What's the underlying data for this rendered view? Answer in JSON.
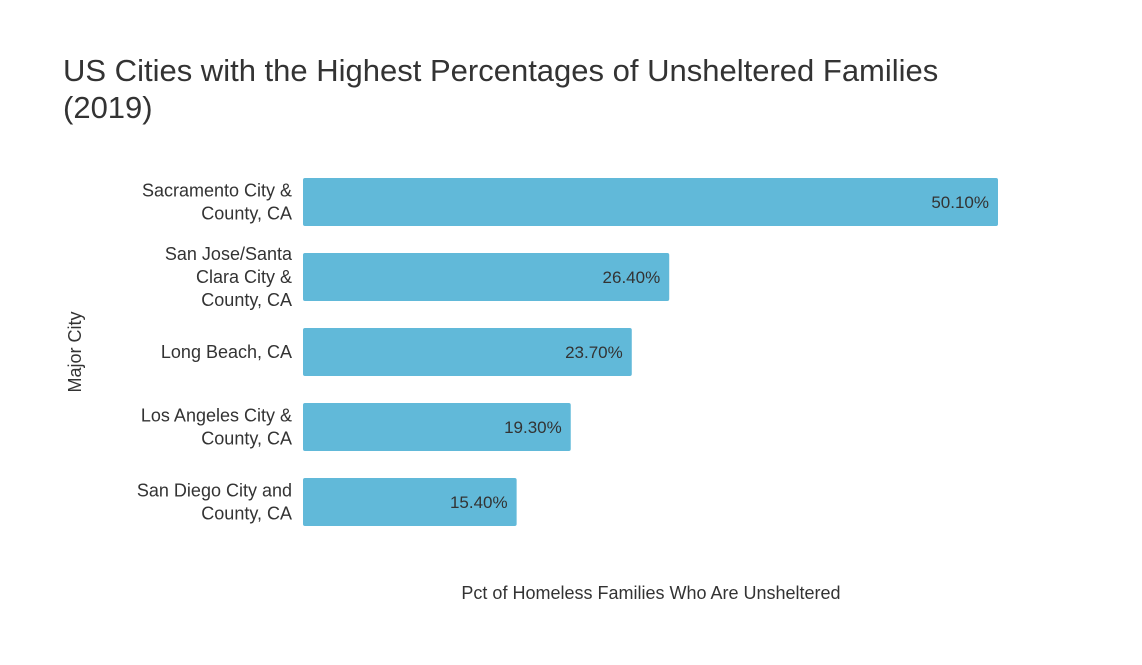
{
  "chart_data": {
    "type": "bar",
    "orientation": "horizontal",
    "title_lines": [
      "US Cities with the Highest Percentages of Unsheltered Families",
      "(2019)"
    ],
    "xlabel": "Pct of Homeless Families Who Are Unsheltered",
    "ylabel": "Major City",
    "categories": [
      [
        "Sacramento City &",
        "County, CA"
      ],
      [
        "San Jose/Santa",
        "Clara City &",
        "County, CA"
      ],
      [
        "Long Beach, CA"
      ],
      [
        "Los Angeles City &",
        "County, CA"
      ],
      [
        "San Diego City and",
        "County, CA"
      ]
    ],
    "values": [
      50.1,
      26.4,
      23.7,
      19.3,
      15.4
    ],
    "value_labels": [
      "50.10%",
      "26.40%",
      "23.70%",
      "19.30%",
      "15.40%"
    ],
    "xlim": [
      0,
      50.1
    ],
    "grid": false,
    "legend": "none",
    "bar_color": "#61b9d9",
    "text_color": "#333333"
  }
}
